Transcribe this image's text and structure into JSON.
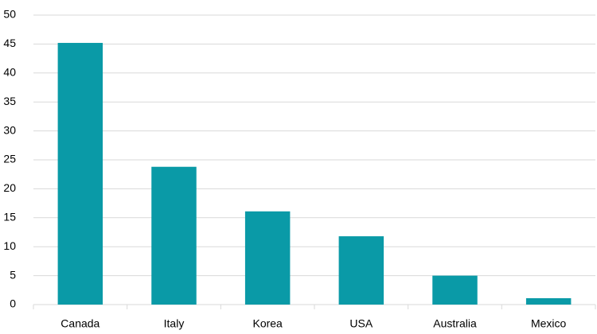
{
  "chart_data": {
    "type": "bar",
    "categories": [
      "Canada",
      "Italy",
      "Korea",
      "USA",
      "Australia",
      "Mexico"
    ],
    "values": [
      45.2,
      23.8,
      16.1,
      11.8,
      5,
      1.1
    ],
    "color": "#0a9aa7",
    "ylim": [
      0,
      50
    ],
    "yticks": [
      0,
      5,
      10,
      15,
      20,
      25,
      30,
      35,
      40,
      45,
      50
    ],
    "grid": true
  }
}
